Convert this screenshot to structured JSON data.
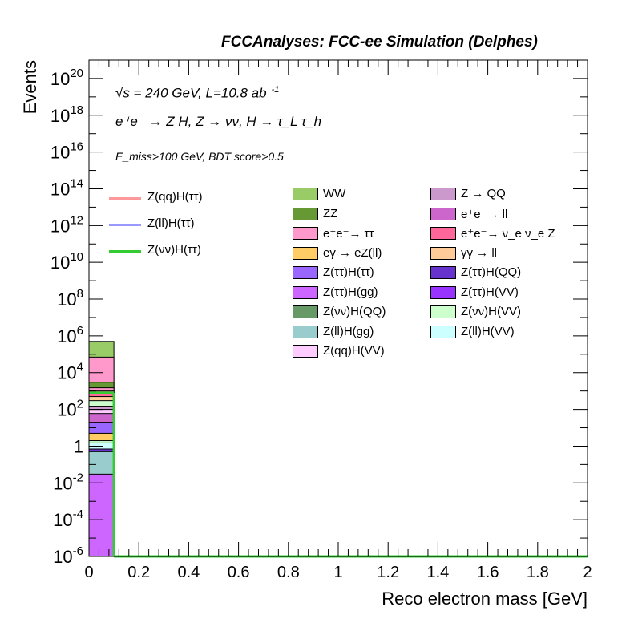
{
  "header": "FCCAnalyses: FCC-ee Simulation (Delphes)",
  "annotations": {
    "line1": "√s = 240 GeV, L=10.8 ab",
    "line1_sup": "-1",
    "line2": "e⁺e⁻ → Z H, Z → νν, H → τ_L τ_h",
    "line3": "E_miss>100 GeV, BDT score>0.5"
  },
  "colors": {
    "WW": "#99cc66",
    "ZZ": "#669933",
    "ee_tautau": "#ff99cc",
    "egamma_eZll": "#ffcc66",
    "Ztautau_Htautau": "#9966ff",
    "Ztautau_Hgg": "#cc66ff",
    "Znunu_HQQ": "#669966",
    "Zll_Hgg": "#99cccc",
    "Zqq_HVV": "#ffccff",
    "Z_QQ": "#cc99cc",
    "ee_ll": "#cc66cc",
    "ee_nunuZ": "#ff6699",
    "gammagamma_ll": "#ffcc99",
    "Ztautau_HQQ": "#6633cc",
    "Ztautau_HVV": "#9933ff",
    "Znunu_HVV": "#ccffcc",
    "Zll_HVV": "#ccffff",
    "Zqq_Htautau": "#ff9999",
    "Zll_Htautau": "#9999ff",
    "Znunu_Htautau": "#33cc33"
  },
  "legend": {
    "signals": [
      {
        "label": "Z(qq)H(ττ)",
        "color_key": "Zqq_Htautau"
      },
      {
        "label": "Z(ll)H(ττ)",
        "color_key": "Zll_Htautau"
      },
      {
        "label": "Z(νν)H(ττ)",
        "color_key": "Znunu_Htautau"
      }
    ],
    "col1": [
      {
        "label": "WW",
        "color_key": "WW"
      },
      {
        "label": "ZZ",
        "color_key": "ZZ"
      },
      {
        "label": "e⁺e⁻→ ττ",
        "color_key": "ee_tautau"
      },
      {
        "label": "eγ → eZ(ll)",
        "color_key": "egamma_eZll"
      },
      {
        "label": "Z(ττ)H(ττ)",
        "color_key": "Ztautau_Htautau"
      },
      {
        "label": "Z(ττ)H(gg)",
        "color_key": "Ztautau_Hgg"
      },
      {
        "label": "Z(νν)H(QQ)",
        "color_key": "Znunu_HQQ"
      },
      {
        "label": "Z(ll)H(gg)",
        "color_key": "Zll_Hgg"
      },
      {
        "label": "Z(qq)H(VV)",
        "color_key": "Zqq_HVV"
      }
    ],
    "col2": [
      {
        "label": "Z → QQ",
        "color_key": "Z_QQ"
      },
      {
        "label": "e⁺e⁻→ ll",
        "color_key": "ee_ll"
      },
      {
        "label": "e⁺e⁻→ ν_e ν_e Z",
        "color_key": "ee_nunuZ"
      },
      {
        "label": "γγ → ll",
        "color_key": "gammagamma_ll"
      },
      {
        "label": "Z(ττ)H(QQ)",
        "color_key": "Ztautau_HQQ"
      },
      {
        "label": "Z(ττ)H(VV)",
        "color_key": "Ztautau_HVV"
      },
      {
        "label": "Z(νν)H(VV)",
        "color_key": "Znunu_HVV"
      },
      {
        "label": "Z(ll)H(VV)",
        "color_key": "Zll_HVV"
      }
    ]
  },
  "chart_data": {
    "type": "bar",
    "title": "FCCAnalyses: FCC-ee Simulation (Delphes)",
    "xlabel": "Reco electron mass [GeV]",
    "ylabel": "Events",
    "xlim": [
      0,
      2
    ],
    "ylim": [
      1e-06,
      1e+21
    ],
    "log_y": true,
    "x_ticks": [
      "0",
      "0.2",
      "0.4",
      "0.6",
      "0.8",
      "1",
      "1.2",
      "1.4",
      "1.6",
      "1.8",
      "2"
    ],
    "y_ticks": [
      {
        "base": "10",
        "exp": "-6",
        "v": 1e-06
      },
      {
        "base": "10",
        "exp": "-4",
        "v": 0.0001
      },
      {
        "base": "10",
        "exp": "-2",
        "v": 0.01
      },
      {
        "base": "1",
        "exp": "",
        "v": 1
      },
      {
        "base": "10",
        "exp": "2",
        "v": 100.0
      },
      {
        "base": "10",
        "exp": "4",
        "v": 10000.0
      },
      {
        "base": "10",
        "exp": "6",
        "v": 1000000.0
      },
      {
        "base": "10",
        "exp": "8",
        "v": 100000000.0
      },
      {
        "base": "10",
        "exp": "10",
        "v": 10000000000.0
      },
      {
        "base": "10",
        "exp": "12",
        "v": 1000000000000.0
      },
      {
        "base": "10",
        "exp": "14",
        "v": 100000000000000.0
      },
      {
        "base": "10",
        "exp": "16",
        "v": 1e+16
      },
      {
        "base": "10",
        "exp": "18",
        "v": 1e+18
      },
      {
        "base": "10",
        "exp": "20",
        "v": 1e+20
      }
    ],
    "bin": [
      0,
      0.1
    ],
    "stack_tops": [
      {
        "name": "Z(ll)H(gg)",
        "color_key": "Zll_Hgg",
        "top": 0.5
      },
      {
        "name": "Z(ll)H(VV)",
        "color_key": "Zll_HVV",
        "top": 1.5
      },
      {
        "name": "Z(νν)H(VV)",
        "color_key": "Znunu_HVV",
        "top": 2
      },
      {
        "name": "Z(ττ)H(gg)",
        "color_key": "Ztautau_Hgg",
        "top": 0.03
      },
      {
        "name": "Z(ττ)H(QQ)",
        "color_key": "Ztautau_HQQ",
        "top": 0.7
      },
      {
        "name": "eγ → eZ(ll)",
        "color_key": "egamma_eZll",
        "top": 5
      },
      {
        "name": "Z(ττ)H(ττ)",
        "color_key": "Ztautau_Htautau",
        "top": 20
      },
      {
        "name": "e⁺e⁻→ ll",
        "color_key": "ee_ll",
        "top": 60
      },
      {
        "name": "Z(qq)H(VV)",
        "color_key": "Zqq_HVV",
        "top": 100
      },
      {
        "name": "Z → QQ",
        "color_key": "Z_QQ",
        "top": 150
      },
      {
        "name": "Z(νν)H(VV)",
        "color_key": "Znunu_HVV",
        "top": 300
      },
      {
        "name": "γγ → ll",
        "color_key": "gammagamma_ll",
        "top": 500
      },
      {
        "name": "e⁺e⁻→ ν_e ν_e Z",
        "color_key": "ee_nunuZ",
        "top": 1000
      },
      {
        "name": "e⁺e⁻→ ττ",
        "color_key": "ee_tautau",
        "top": 1500
      },
      {
        "name": "ZZ",
        "color_key": "ZZ",
        "top": 3000
      },
      {
        "name": "e⁺e⁻→ ττ",
        "color_key": "ee_tautau",
        "top": 70000
      },
      {
        "name": "WW",
        "color_key": "WW",
        "top": 500000
      }
    ],
    "signal_lines": [
      {
        "name": "Z(νν)H(ττ)",
        "color_key": "Znunu_Htautau",
        "value": 800
      }
    ]
  }
}
